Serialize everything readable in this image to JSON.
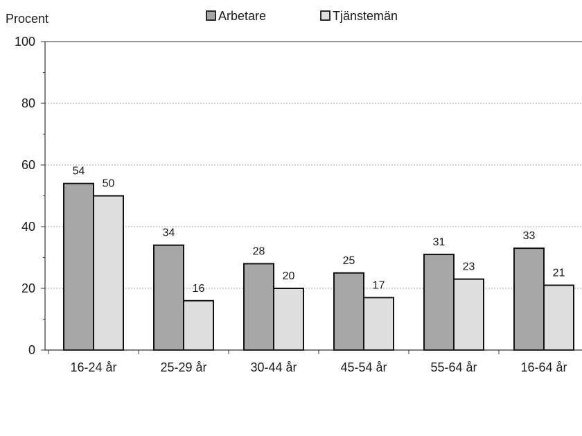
{
  "chart_data": {
    "type": "bar",
    "ylabel": "Procent",
    "ylim": [
      0,
      100
    ],
    "yticks": [
      0,
      20,
      40,
      60,
      80,
      100
    ],
    "grid": true,
    "legend_position": "top",
    "categories": [
      "16-24 år",
      "25-29 år",
      "30-44 år",
      "45-54 år",
      "55-64 år",
      "16-64 år"
    ],
    "series": [
      {
        "name": "Arbetare",
        "values": [
          54,
          34,
          28,
          25,
          31,
          33
        ],
        "color": "#a6a6a6"
      },
      {
        "name": "Tjänstemän",
        "values": [
          50,
          16,
          20,
          17,
          23,
          21
        ],
        "color": "#dedede"
      }
    ],
    "value_labels": [
      [
        "54",
        "34",
        "28",
        "25",
        "31",
        "33"
      ],
      [
        "50",
        "16",
        "20",
        "17",
        "23",
        "21"
      ]
    ]
  }
}
